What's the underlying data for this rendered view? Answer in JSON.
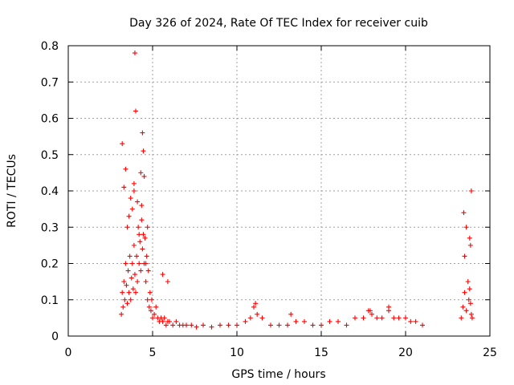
{
  "chart_data": {
    "type": "scatter",
    "title": "Day 326 of 2024, Rate Of TEC Index for receiver cuib",
    "xlabel": "GPS time / hours",
    "ylabel": "ROTI / TECUs",
    "xlim": [
      0,
      25
    ],
    "ylim": [
      0,
      0.8
    ],
    "xticks": [
      "0",
      "5",
      "10",
      "15",
      "20",
      "25"
    ],
    "yticks": [
      "0",
      "0.1",
      "0.2",
      "0.3",
      "0.4",
      "0.5",
      "0.6",
      "0.7",
      "0.8"
    ],
    "grid": true,
    "marker": "plus",
    "color": "#ff0000",
    "series": [
      {
        "x": [
          3.15,
          3.2,
          3.25,
          3.3,
          3.35,
          3.4,
          3.45,
          3.5,
          3.55,
          3.6,
          3.65,
          3.7,
          3.75,
          3.8,
          3.85,
          3.9,
          3.95,
          4.0,
          4.05,
          4.1,
          4.15,
          4.2,
          4.25,
          4.3,
          4.35,
          4.4,
          4.45,
          4.5,
          4.55,
          4.6,
          4.65,
          4.7,
          4.75,
          4.8,
          4.85,
          4.9,
          4.95,
          5.0,
          5.1,
          5.2,
          5.3,
          5.4,
          5.5,
          5.6,
          5.7,
          5.8,
          5.9,
          6.0,
          6.2,
          6.4,
          6.6,
          6.8,
          7.0,
          7.3,
          7.6,
          8.0,
          8.5,
          9.0,
          9.5,
          10.0,
          10.5,
          10.8,
          11.0,
          11.2,
          11.5,
          12.0,
          12.5,
          13.0,
          13.5,
          14.0,
          14.5,
          15.0,
          15.5,
          16.0,
          16.5,
          17.0,
          17.5,
          17.8,
          18.0,
          18.3,
          18.6,
          19.0,
          19.3,
          19.6,
          20.0,
          20.3,
          20.6,
          21.0,
          23.3,
          23.4,
          23.5,
          23.6,
          23.7,
          23.75,
          23.8,
          23.85,
          23.9,
          23.95,
          3.2,
          3.3,
          3.5,
          3.7,
          3.9,
          3.95,
          4.1,
          4.3,
          4.4,
          4.45,
          4.5,
          3.6,
          3.8,
          4.0,
          4.2,
          4.6,
          4.7,
          3.4,
          3.9,
          4.35,
          5.6,
          5.9,
          11.1,
          13.2,
          17.9,
          19.0,
          23.45,
          23.6,
          23.8,
          23.9,
          23.85,
          23.5
        ],
        "y": [
          0.06,
          0.12,
          0.08,
          0.15,
          0.1,
          0.2,
          0.14,
          0.09,
          0.18,
          0.12,
          0.22,
          0.1,
          0.16,
          0.2,
          0.13,
          0.25,
          0.17,
          0.12,
          0.22,
          0.15,
          0.3,
          0.2,
          0.26,
          0.18,
          0.32,
          0.24,
          0.28,
          0.2,
          0.27,
          0.15,
          0.22,
          0.1,
          0.18,
          0.08,
          0.12,
          0.07,
          0.1,
          0.05,
          0.06,
          0.08,
          0.05,
          0.04,
          0.05,
          0.04,
          0.05,
          0.03,
          0.04,
          0.04,
          0.03,
          0.04,
          0.03,
          0.03,
          0.03,
          0.03,
          0.025,
          0.03,
          0.025,
          0.03,
          0.03,
          0.03,
          0.04,
          0.05,
          0.08,
          0.06,
          0.05,
          0.03,
          0.03,
          0.03,
          0.04,
          0.04,
          0.03,
          0.03,
          0.04,
          0.04,
          0.03,
          0.05,
          0.05,
          0.07,
          0.06,
          0.05,
          0.05,
          0.07,
          0.05,
          0.05,
          0.05,
          0.04,
          0.04,
          0.03,
          0.05,
          0.08,
          0.12,
          0.07,
          0.15,
          0.1,
          0.13,
          0.09,
          0.06,
          0.05,
          0.53,
          0.41,
          0.3,
          0.38,
          0.42,
          0.78,
          0.37,
          0.45,
          0.56,
          0.51,
          0.44,
          0.33,
          0.35,
          0.62,
          0.28,
          0.2,
          0.3,
          0.46,
          0.4,
          0.36,
          0.17,
          0.15,
          0.09,
          0.06,
          0.07,
          0.08,
          0.34,
          0.3,
          0.27,
          0.4,
          0.25,
          0.22
        ]
      }
    ]
  }
}
